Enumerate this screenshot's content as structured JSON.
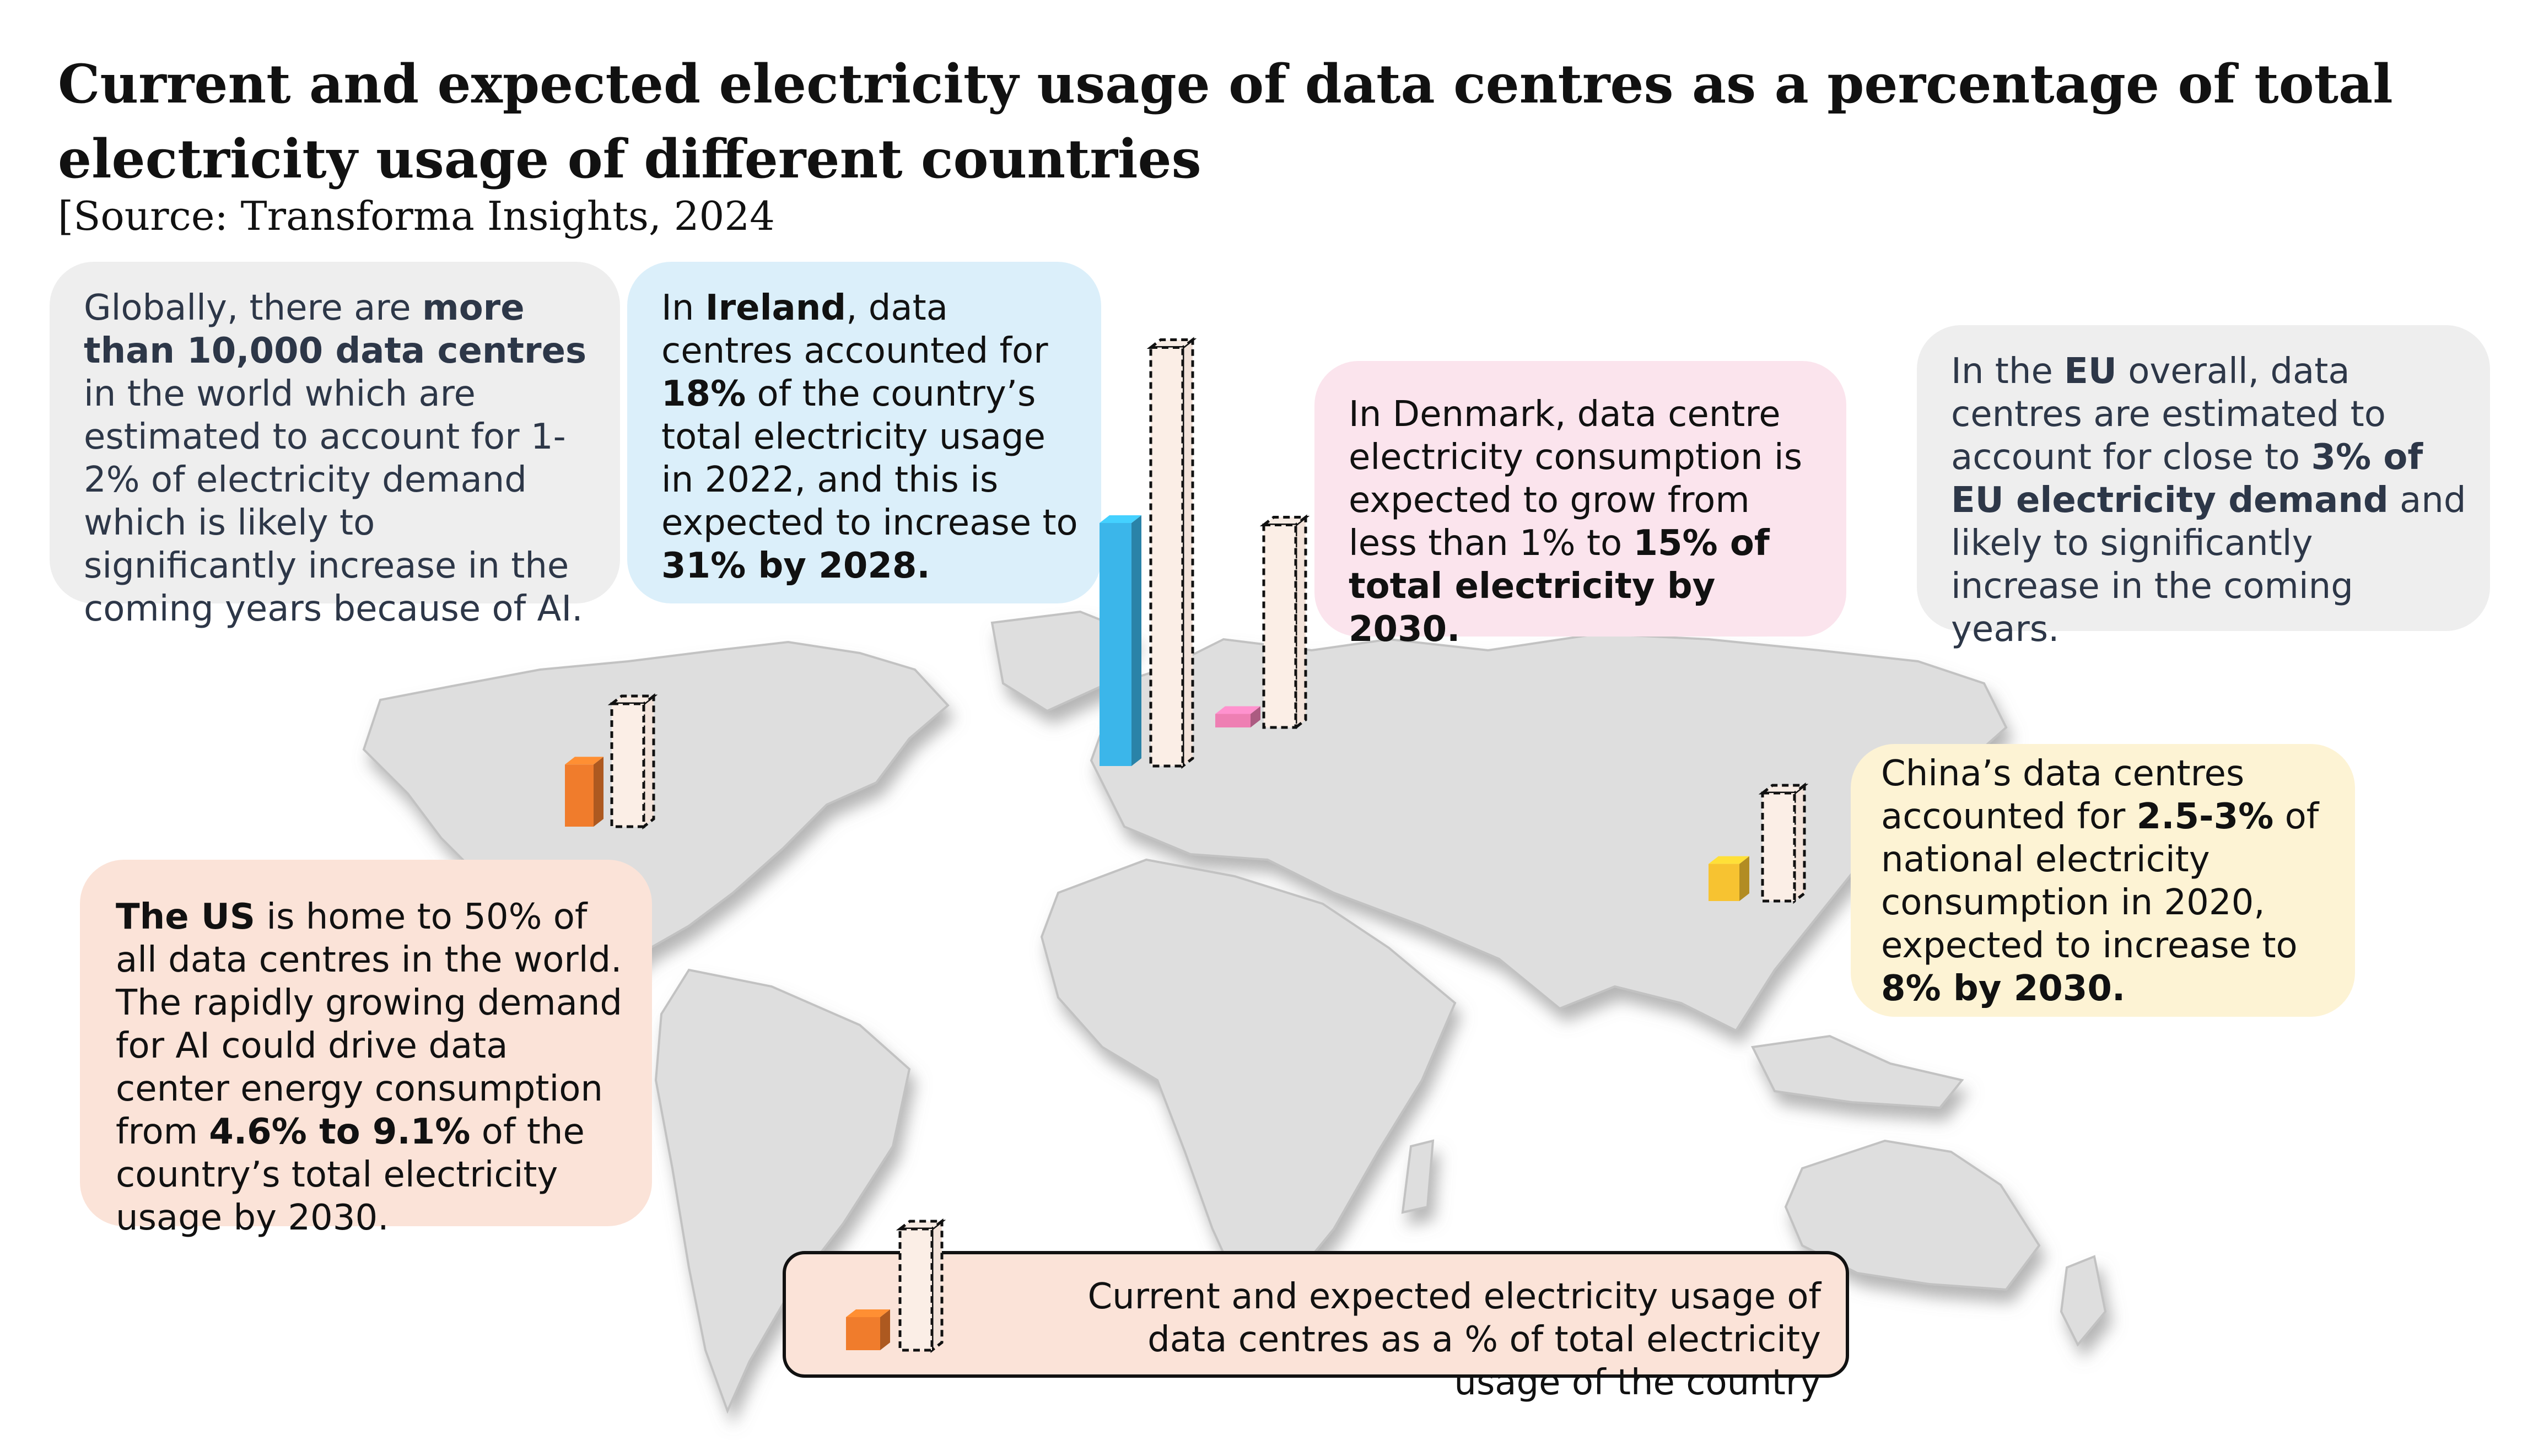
{
  "title": "Current and expected electricity usage of data centres as a percentage of total electricity usage of different countries",
  "source": "[Source: Transforma Insights, 2024",
  "boxes": {
    "global": {
      "t1": "Globally, there are ",
      "b1": "more than 10,000 data centres",
      "t2": " in the world which are estimated to account for 1-2% of electricity demand which is likely to significantly increase in the coming years because of AI."
    },
    "ireland": {
      "t1": "In ",
      "b1": "Ireland",
      "t2": ", data centres accounted for ",
      "b2": "18%",
      "t3": " of the country’s total electricity usage in 2022, and this is expected to increase to ",
      "b3": "31% by 2028."
    },
    "denmark": {
      "t1": "In Denmark, data centre electricity consumption is expected to grow from less than 1% to ",
      "b1": "15% of total electricity by 2030."
    },
    "eu": {
      "t1": "In the ",
      "b1": "EU",
      "t2": " overall, data centres are estimated to account for close to ",
      "b2": "3% of EU electricity demand",
      "t3": " and likely to significantly increase in the coming years."
    },
    "china": {
      "t1": "China’s data centres accounted for ",
      "b1": "2.5-3%",
      "t2": " of national electricity consumption in 2020, expected to increase to ",
      "b2": "8% by 2030."
    },
    "us": {
      "b1": "The US",
      "t1": " is home to 50% of all data centres in the world. The rapidly growing demand for AI could drive data center energy consumption from ",
      "b2": "4.6% to 9.1%",
      "t2": " of the country’s total electricity usage by 2030."
    }
  },
  "legend": {
    "text": "Current and expected electricity usage of data centres as a % of total electricity usage of the country"
  },
  "chart_data": {
    "type": "bar",
    "title": "Current and expected electricity usage of data centres as a percentage of total electricity usage of different countries",
    "unit": "% of total national electricity usage",
    "categories": [
      "US",
      "Ireland",
      "Denmark",
      "China"
    ],
    "series": [
      {
        "name": "Current",
        "values": [
          4.6,
          18,
          1,
          2.75
        ]
      },
      {
        "name": "Expected",
        "values": [
          9.1,
          31,
          15,
          8
        ]
      }
    ],
    "colors": {
      "US": "#f07c2c",
      "Ireland": "#3bb6ea",
      "Denmark": "#ee7fb3",
      "China": "#f7c331",
      "map": "#dcdcdc"
    }
  }
}
